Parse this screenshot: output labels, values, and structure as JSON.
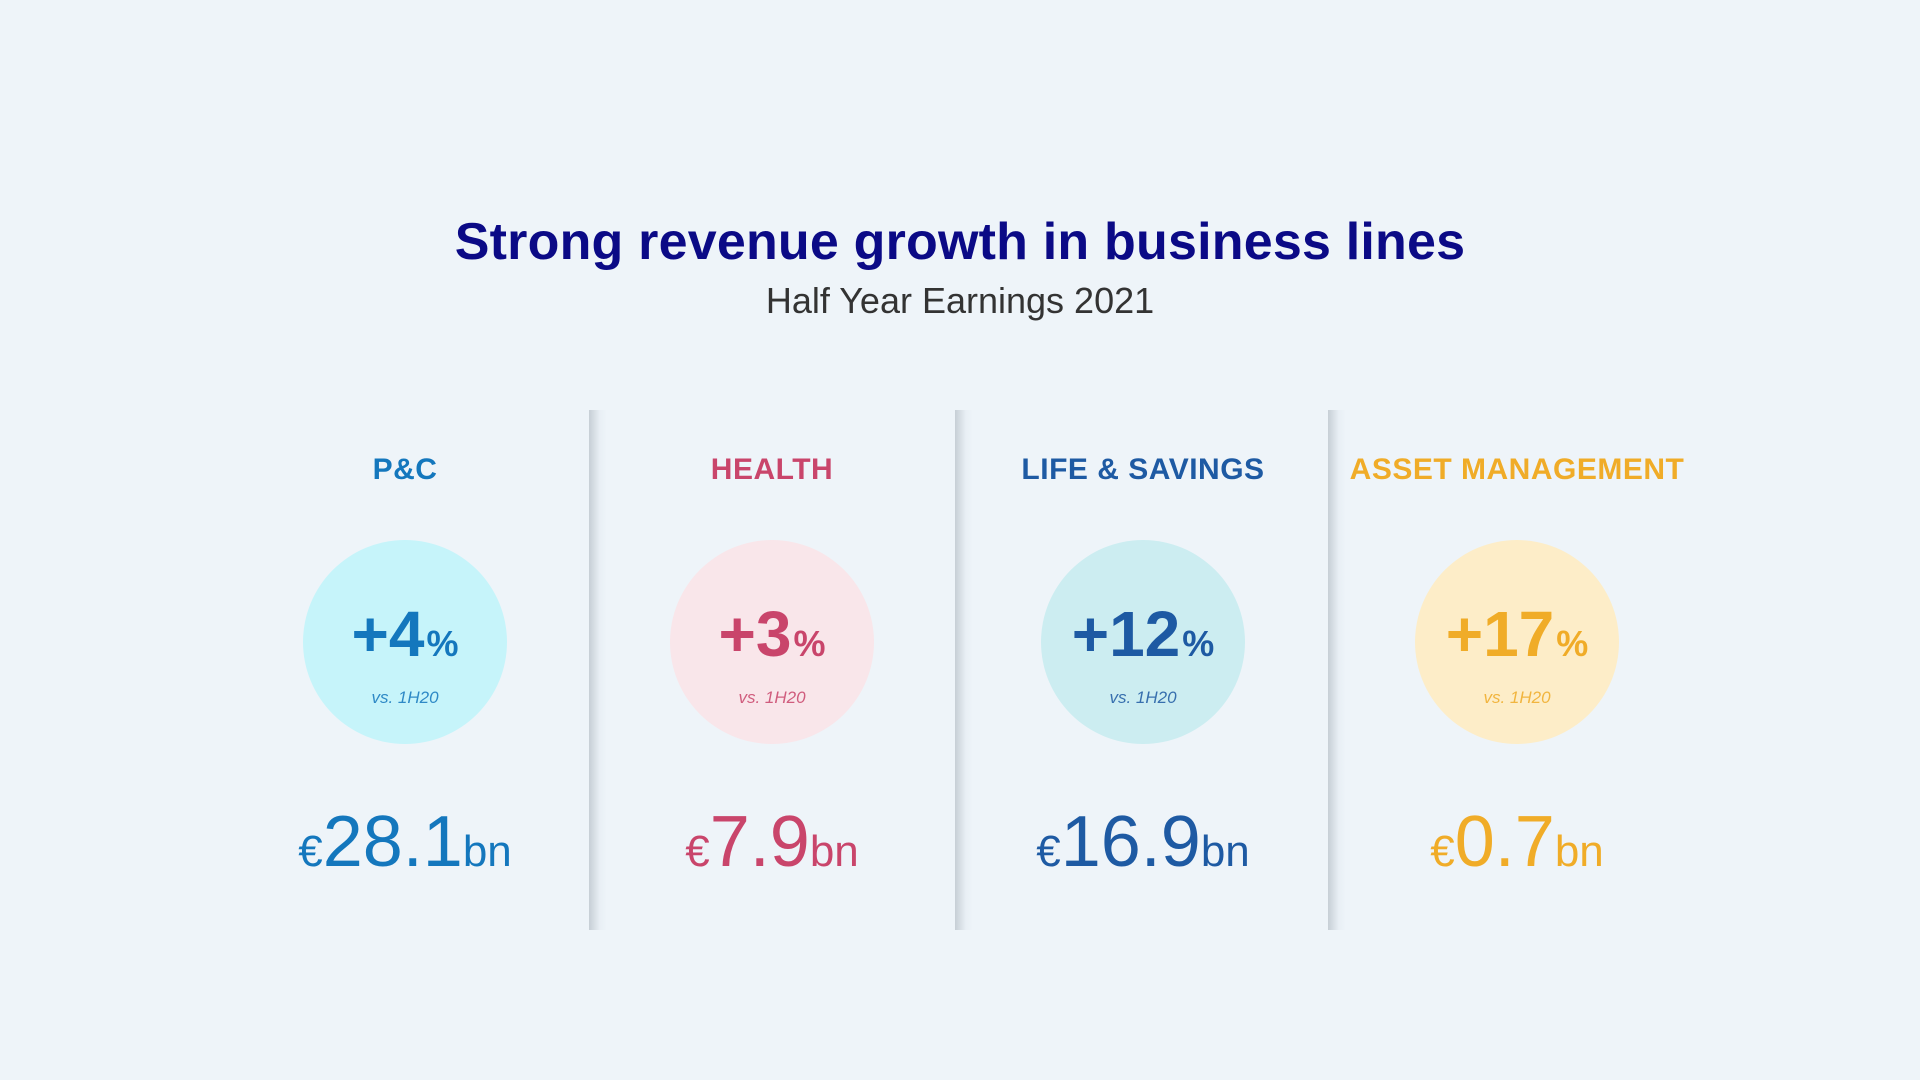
{
  "header": {
    "title": "Strong revenue growth in business lines",
    "subtitle": "Half Year Earnings 2021"
  },
  "business_lines": [
    {
      "label": "P&C",
      "growth": "+4",
      "growth_unit": "%",
      "comparison": "vs. 1H20",
      "currency": "€",
      "revenue": "28.1",
      "revenue_unit": "bn",
      "color": "#1477bd",
      "circle_color": "#c6f4fa"
    },
    {
      "label": "HEALTH",
      "growth": "+3",
      "growth_unit": "%",
      "comparison": "vs. 1H20",
      "currency": "€",
      "revenue": "7.9",
      "revenue_unit": "bn",
      "color": "#c9456b",
      "circle_color": "#f9e6ea"
    },
    {
      "label": "LIFE & SAVINGS",
      "growth": "+12",
      "growth_unit": "%",
      "comparison": "vs. 1H20",
      "currency": "€",
      "revenue": "16.9",
      "revenue_unit": "bn",
      "color": "#1e5aa3",
      "circle_color": "#ccedf1"
    },
    {
      "label": "ASSET MANAGEMENT",
      "growth": "+17",
      "growth_unit": "%",
      "comparison": "vs. 1H20",
      "currency": "€",
      "revenue": "0.7",
      "revenue_unit": "bn",
      "color": "#f0ac28",
      "circle_color": "#fdedc8"
    }
  ]
}
